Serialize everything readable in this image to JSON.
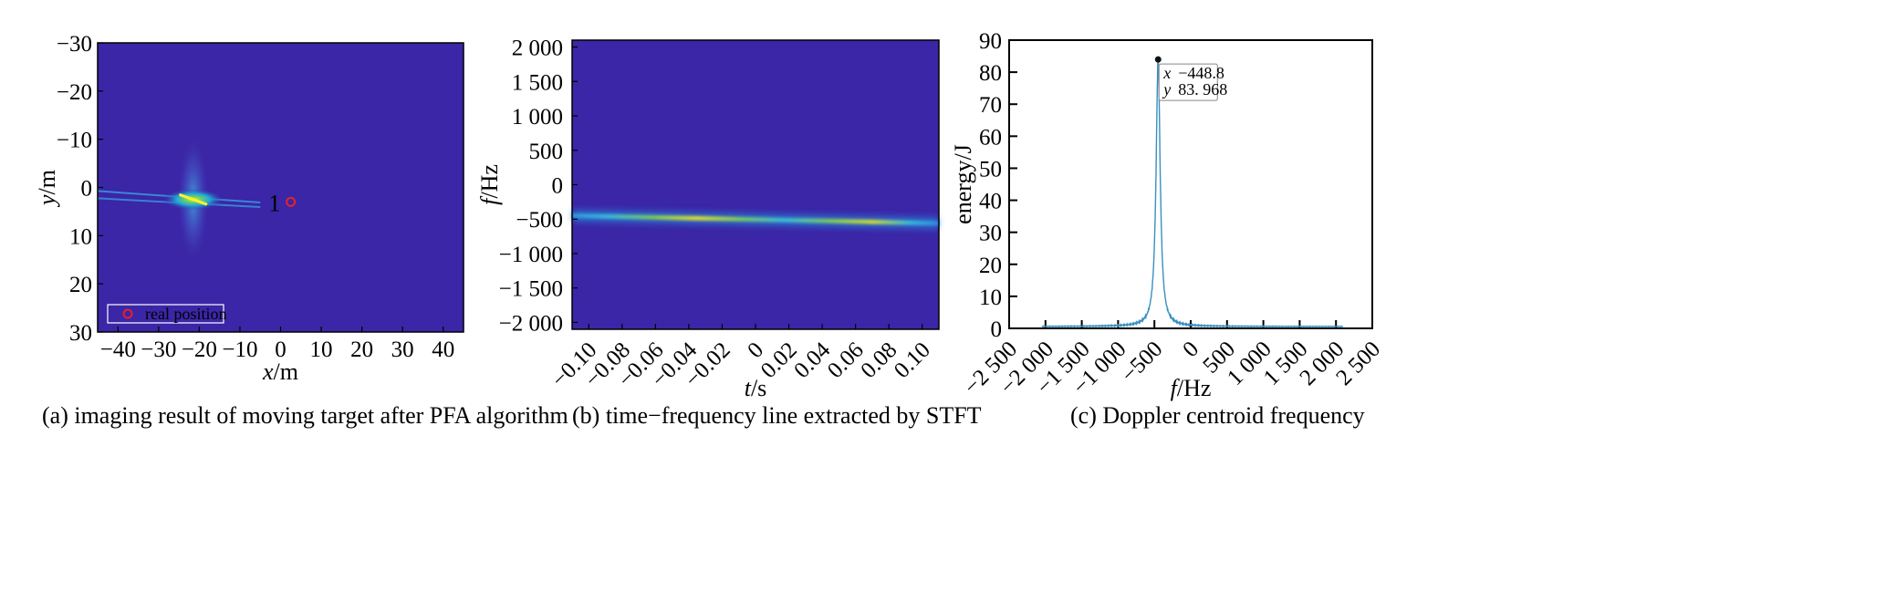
{
  "chart_data": [
    {
      "type": "heatmap",
      "caption": "(a)  imaging result of moving target after PFA algorithm",
      "xlabel_var": "x",
      "xlabel_unit": "/m",
      "ylabel_var": "y",
      "ylabel_unit": "/m",
      "xlim": [
        -45,
        45
      ],
      "ylim": [
        -30,
        30
      ],
      "y_inverted": true,
      "xticks": [
        -40,
        -30,
        -20,
        -10,
        0,
        10,
        20,
        30,
        40
      ],
      "xtick_labels": [
        "−40",
        "−30",
        "−20",
        "−10",
        "0",
        "10",
        "20",
        "30",
        "40"
      ],
      "yticks": [
        -30,
        -20,
        -10,
        0,
        10,
        20,
        30
      ],
      "ytick_labels": [
        "−30",
        "−20",
        "−10",
        "0",
        "10",
        "20",
        "30"
      ],
      "background_color": "#3a26a6",
      "target_center": [
        -21.5,
        2.5
      ],
      "target_streak": {
        "x": [
          -45,
          -5
        ],
        "y": [
          1.5,
          3.5
        ]
      },
      "real_position": [
        2.5,
        3
      ],
      "annotation": {
        "text": "1",
        "x": -1.5,
        "y": 3.2
      },
      "legend": {
        "entries": [
          "real position"
        ],
        "placement": "lower-left",
        "marker_color": "#e8202a"
      }
    },
    {
      "type": "heatmap",
      "caption": "(b)  time−frequency line extracted by STFT",
      "xlabel_var": "t",
      "xlabel_unit": "/s",
      "ylabel_var": "f",
      "ylabel_unit": "/Hz",
      "xlim": [
        -0.11,
        0.11
      ],
      "ylim": [
        -2100,
        2100
      ],
      "xticks": [
        -0.1,
        -0.08,
        -0.06,
        -0.04,
        -0.02,
        0,
        0.02,
        0.04,
        0.06,
        0.08,
        0.1
      ],
      "xtick_labels": [
        "−0.10",
        "−0.08",
        "−0.06",
        "−0.04",
        "−0.02",
        "0",
        "0.02",
        "0.04",
        "0.06",
        "0.08",
        "0.10"
      ],
      "yticks": [
        2000,
        1500,
        1000,
        500,
        0,
        -500,
        -1000,
        -1500,
        -2000
      ],
      "ytick_labels": [
        "2 000",
        "1 500",
        "1 000",
        "500",
        "0",
        "−500",
        "−1 000",
        "−1 500",
        "−2 000"
      ],
      "background_color": "#3a26a6",
      "line": {
        "t": [
          -0.11,
          0.11
        ],
        "f": [
          -450,
          -560
        ]
      }
    },
    {
      "type": "line",
      "caption": "(c)  Doppler centroid frequency",
      "xlabel_var": "f",
      "xlabel_unit": "/Hz",
      "ylabel": "energy/J",
      "xlim": [
        -2500,
        2500
      ],
      "ylim": [
        0,
        90
      ],
      "xticks": [
        -2500,
        -2000,
        -1500,
        -1000,
        -500,
        0,
        500,
        1000,
        1500,
        2000,
        2500
      ],
      "xtick_labels": [
        "−2 500",
        "−2 000",
        "−1 500",
        "−1 000",
        "−500",
        "0",
        "500",
        "1 000",
        "1 500",
        "2 000",
        "2 500"
      ],
      "yticks": [
        0,
        10,
        20,
        30,
        40,
        50,
        60,
        70,
        80,
        90
      ],
      "ytick_labels": [
        "0",
        "10",
        "20",
        "30",
        "40",
        "50",
        "60",
        "70",
        "80",
        "90"
      ],
      "line_color": "#3b8fc0",
      "x_range": [
        -2050,
        2100
      ],
      "peak": {
        "x": -448.8,
        "y": 83.968
      },
      "datatip": {
        "x_label": "x",
        "x_value": "−448.8",
        "y_label": "y",
        "y_value": "83. 968"
      }
    }
  ]
}
